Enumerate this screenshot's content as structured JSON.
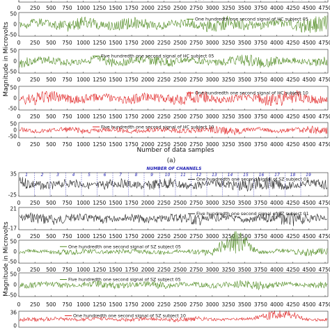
{
  "figure": {
    "caption_a": "(a)",
    "top_xlabel": "Number of data samples",
    "top_ylabel": "Magnitude in Microvolts",
    "bottom_ylabel": "Magnitude in Microvolts",
    "channels_title": "NUMBER OF CHANNELS",
    "channel_numbers": [
      "1",
      "2",
      "3",
      "4",
      "5",
      "6",
      "7",
      "8",
      "9",
      "10",
      "11",
      "12",
      "13",
      "14",
      "15",
      "16",
      "17",
      "18",
      "19"
    ],
    "x_tick_labels": [
      "0",
      "250",
      "500",
      "750",
      "1000",
      "1250",
      "1500",
      "1750",
      "2000",
      "2250",
      "2500",
      "2750",
      "3000",
      "3250",
      "3500",
      "3750",
      "4000",
      "4250",
      "4500",
      "4750"
    ]
  },
  "chart_data": [
    {
      "type": "line",
      "panel": "top-partial",
      "color": "#222222",
      "xlim": [
        0,
        4750
      ],
      "ylim": [
        null,
        null
      ],
      "legend": "",
      "yticks": [],
      "amplitude": 0.55,
      "seed": 1
    },
    {
      "type": "line",
      "panel": "HC-05-1/100",
      "color": "#4e8a1f",
      "xlim": [
        0,
        4750
      ],
      "ylim": [
        -50,
        50
      ],
      "yticks": [
        "50",
        "0",
        "-50"
      ],
      "legend": "One hundredth one second signal of HC subject 05",
      "amplitude": 0.7,
      "seed": 2
    },
    {
      "type": "line",
      "panel": "HC-05-5/100",
      "color": "#4e8a1f",
      "xlim": [
        0,
        4750
      ],
      "ylim": [
        -50,
        50
      ],
      "yticks": [
        "50",
        "0",
        "-50"
      ],
      "legend": "Five hundredth one second signal of HC subject 05",
      "amplitude": 0.55,
      "seed": 3
    },
    {
      "type": "line",
      "panel": "HC-10-1/100",
      "color": "#e02020",
      "xlim": [
        0,
        4750
      ],
      "ylim": [
        -50,
        50
      ],
      "yticks": [
        "50",
        "0",
        "-50"
      ],
      "legend": "One hundredth one second signal of HC subject 10",
      "amplitude": 0.65,
      "seed": 4
    },
    {
      "type": "line",
      "panel": "HC-10-5/100",
      "color": "#e02020",
      "xlim": [
        0,
        4750
      ],
      "ylim": [
        -50,
        50
      ],
      "yticks": [
        "50",
        "0",
        "-50"
      ],
      "legend": "Five hundredth one second signal of HC subject 10",
      "amplitude": 0.55,
      "seed": 5
    },
    {
      "type": "line",
      "panel": "SZ-01-1/100",
      "color": "#222222",
      "xlim": [
        0,
        4750
      ],
      "ylim": [
        -25,
        35
      ],
      "yticks": [
        "35",
        "-25"
      ],
      "legend": "One hundredth one second signal of SZ subject 01",
      "amplitude": 0.6,
      "seed": 6
    },
    {
      "type": "line",
      "panel": "SZ-01-5/100",
      "color": "#222222",
      "xlim": [
        0,
        4750
      ],
      "ylim": [
        -17,
        21
      ],
      "yticks": [
        "21",
        "-17"
      ],
      "legend": "Five hundredth one second signal of SZ subject 01",
      "amplitude": 0.6,
      "seed": 7
    },
    {
      "type": "line",
      "panel": "SZ-05-1/100",
      "color": "#4e8a1f",
      "xlim": [
        0,
        4750
      ],
      "ylim": [
        -50,
        50
      ],
      "yticks": [
        "50",
        "0",
        "-50"
      ],
      "legend": "One hundredth one second signal of SZ subject 05",
      "amplitude": 0.35,
      "seed": 8,
      "dip": [
        3000,
        3700,
        1.6
      ]
    },
    {
      "type": "line",
      "panel": "SZ-05-5/100",
      "color": "#4e8a1f",
      "xlim": [
        0,
        4750
      ],
      "ylim": [
        -50,
        50
      ],
      "yticks": [
        "50",
        "0",
        "-50"
      ],
      "legend": "Five hundredth one second signal of SZ subject 05",
      "amplitude": 0.4,
      "seed": 9
    },
    {
      "type": "line",
      "panel": "SZ-10-1/100",
      "color": "#e02020",
      "xlim": [
        0,
        4750
      ],
      "ylim": [
        -36,
        36
      ],
      "yticks": [
        "36",
        "0"
      ],
      "legend": "One hundredth one second signal of SZ subject 10",
      "amplitude": 0.35,
      "seed": 10,
      "dip": [
        3600,
        4400,
        1.2
      ]
    }
  ]
}
